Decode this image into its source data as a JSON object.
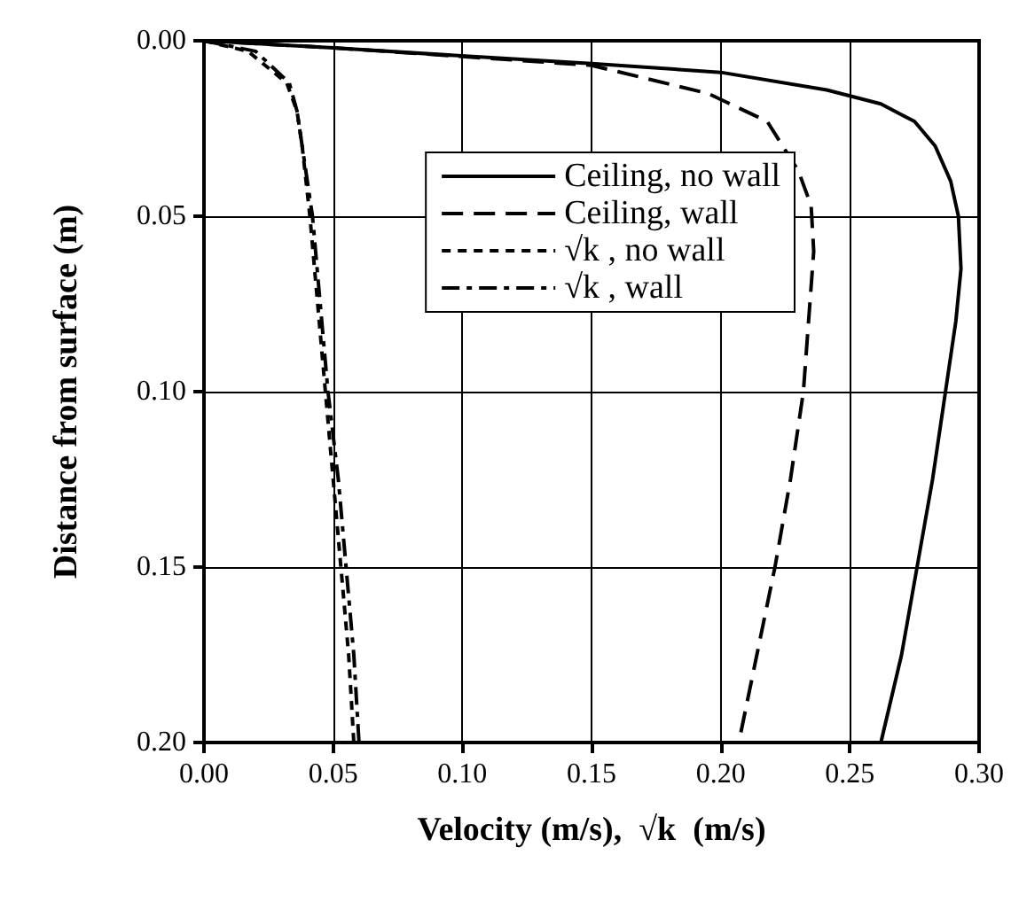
{
  "chart_data": {
    "type": "line",
    "xlabel": "Velocity (m/s),  √k  (m/s)",
    "ylabel": "Distance from surface (m)",
    "xlim": [
      0,
      0.3
    ],
    "xticks": [
      {
        "value": 0,
        "label": "0.00"
      },
      {
        "value": 0.05,
        "label": "0.05"
      },
      {
        "value": 0.1,
        "label": "0.10"
      },
      {
        "value": 0.15,
        "label": "0.15"
      },
      {
        "value": 0.2,
        "label": "0.20"
      },
      {
        "value": 0.25,
        "label": "0.25"
      },
      {
        "value": 0.3,
        "label": "0.30"
      }
    ],
    "ylim": [
      0.2,
      0
    ],
    "yticks": [
      {
        "value": 0,
        "label": "0.00"
      },
      {
        "value": 0.05,
        "label": "0.05"
      },
      {
        "value": 0.1,
        "label": "0.10"
      },
      {
        "value": 0.15,
        "label": "0.15"
      },
      {
        "value": 0.2,
        "label": "0.20"
      }
    ],
    "grid": true,
    "legend": "top right",
    "marker": "none",
    "series": [
      {
        "name": "Ceiling, no wall",
        "color": "#000000",
        "line_style": "solid",
        "x": [
          0,
          0.05,
          0.104,
          0.15,
          0.2,
          0.241,
          0.262,
          0.275,
          0.283,
          0.289,
          0.292,
          0.293,
          0.291,
          0.287,
          0.282,
          0.276,
          0.27,
          0.262
        ],
        "values": [
          0,
          0.002,
          0.0045,
          0.0065,
          0.009,
          0.014,
          0.018,
          0.023,
          0.03,
          0.04,
          0.05,
          0.065,
          0.08,
          0.1,
          0.125,
          0.15,
          0.175,
          0.2
        ]
      },
      {
        "name": "Ceiling, wall",
        "color": "#000000",
        "line_style": "dashed",
        "x": [
          0,
          0.05,
          0.1,
          0.15,
          0.195,
          0.218,
          0.23,
          0.235,
          0.236,
          0.234,
          0.232,
          0.227,
          0.221,
          0.214,
          0.207
        ],
        "values": [
          0,
          0.002,
          0.0045,
          0.007,
          0.015,
          0.023,
          0.037,
          0.047,
          0.06,
          0.08,
          0.1,
          0.125,
          0.15,
          0.175,
          0.2
        ]
      },
      {
        "name": "√k , no wall",
        "color": "#000000",
        "line_style": "dotted",
        "x": [
          0,
          0.017,
          0.032,
          0.036,
          0.038,
          0.041,
          0.044,
          0.047,
          0.05,
          0.053,
          0.056,
          0.058
        ],
        "values": [
          0,
          0.003,
          0.012,
          0.02,
          0.03,
          0.05,
          0.075,
          0.1,
          0.125,
          0.15,
          0.175,
          0.2
        ]
      },
      {
        "name": "√k , wall",
        "color": "#000000",
        "line_style": "dashdot",
        "x": [
          0,
          0.02,
          0.033,
          0.036,
          0.038,
          0.042,
          0.045,
          0.048,
          0.052,
          0.055,
          0.058,
          0.06
        ],
        "values": [
          0,
          0.003,
          0.012,
          0.02,
          0.03,
          0.05,
          0.075,
          0.1,
          0.125,
          0.15,
          0.175,
          0.2
        ]
      }
    ]
  }
}
